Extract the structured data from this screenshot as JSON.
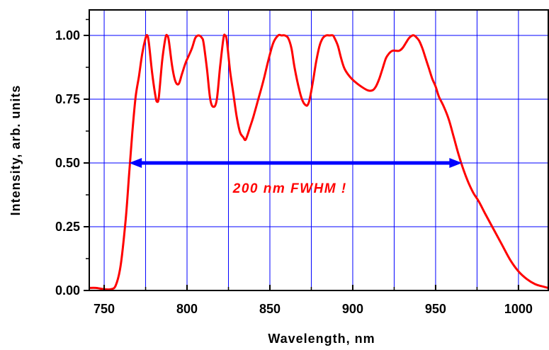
{
  "chart_data": {
    "type": "line",
    "xlabel": "Wavelength, nm",
    "ylabel": "Intensity, arb. units",
    "xlim": [
      741,
      1018
    ],
    "ylim": [
      0.0,
      1.1
    ],
    "x_ticks": [
      750,
      800,
      850,
      900,
      950,
      1000
    ],
    "x_tick_labels": [
      "750",
      "800",
      "850",
      "900",
      "950",
      "1000"
    ],
    "x_minor_ticks": [
      775,
      825,
      875,
      925,
      975
    ],
    "y_ticks": [
      0.0,
      0.25,
      0.5,
      0.75,
      1.0
    ],
    "y_tick_labels": [
      "0.00",
      "0.25",
      "0.50",
      "0.75",
      "1.00"
    ],
    "y_minor_ticks": [
      0.125,
      0.375,
      0.625,
      0.875,
      1.0625
    ],
    "grid": true,
    "series": [
      {
        "color": "#ff0000",
        "x": [
          741,
          745,
          750,
          754,
          757,
          760,
          763,
          765,
          767,
          769,
          771,
          773,
          775,
          776,
          777,
          779,
          781,
          782,
          783,
          785,
          787,
          788,
          789,
          791,
          793,
          795,
          797,
          799,
          801,
          803,
          805,
          807,
          809,
          810,
          812,
          814,
          816,
          818,
          820,
          822,
          823,
          824,
          826,
          828,
          830,
          832,
          834,
          835,
          836,
          838,
          840,
          843,
          846,
          849,
          852,
          855,
          857,
          859,
          861,
          863,
          865,
          868,
          870,
          872,
          873,
          874,
          876,
          878,
          880,
          882,
          884,
          886,
          888,
          889,
          891,
          893,
          895,
          898,
          901,
          905,
          909,
          912,
          914,
          916,
          918,
          920,
          922,
          924,
          926,
          928,
          930,
          932,
          934,
          936,
          937,
          938,
          940,
          942,
          944,
          946,
          948,
          950,
          952,
          955,
          958,
          961,
          964,
          967,
          970,
          973,
          976,
          980,
          985,
          990,
          995,
          1000,
          1005,
          1010,
          1015,
          1018
        ],
        "y": [
          0.01,
          0.01,
          0.005,
          0.005,
          0.02,
          0.1,
          0.28,
          0.45,
          0.62,
          0.76,
          0.84,
          0.93,
          0.99,
          1.0,
          0.97,
          0.85,
          0.76,
          0.74,
          0.76,
          0.9,
          0.99,
          1.0,
          0.98,
          0.88,
          0.82,
          0.81,
          0.85,
          0.89,
          0.92,
          0.95,
          0.99,
          1.0,
          0.99,
          0.97,
          0.87,
          0.75,
          0.72,
          0.75,
          0.88,
          0.99,
          1.0,
          0.98,
          0.86,
          0.77,
          0.68,
          0.62,
          0.6,
          0.59,
          0.6,
          0.64,
          0.68,
          0.75,
          0.82,
          0.9,
          0.97,
          1.0,
          1.0,
          1.0,
          0.99,
          0.95,
          0.87,
          0.78,
          0.74,
          0.725,
          0.73,
          0.75,
          0.82,
          0.9,
          0.96,
          0.99,
          1.0,
          1.0,
          1.0,
          0.99,
          0.96,
          0.91,
          0.87,
          0.84,
          0.82,
          0.8,
          0.785,
          0.785,
          0.8,
          0.83,
          0.87,
          0.91,
          0.93,
          0.94,
          0.94,
          0.94,
          0.95,
          0.97,
          0.99,
          1.0,
          1.0,
          0.995,
          0.98,
          0.95,
          0.91,
          0.87,
          0.83,
          0.8,
          0.76,
          0.72,
          0.67,
          0.6,
          0.53,
          0.47,
          0.42,
          0.38,
          0.35,
          0.3,
          0.24,
          0.18,
          0.12,
          0.075,
          0.045,
          0.025,
          0.015,
          0.01
        ]
      }
    ],
    "annotation": {
      "text": "200 nm FWHM !",
      "color": "#ff0000",
      "arrow_from_x": 765,
      "arrow_to_x": 966,
      "arrow_y": 0.5,
      "arrow_color": "#0000ff"
    },
    "colors": {
      "grid": "#0000ff",
      "frame": "#000000",
      "curve": "#ff0000"
    }
  }
}
